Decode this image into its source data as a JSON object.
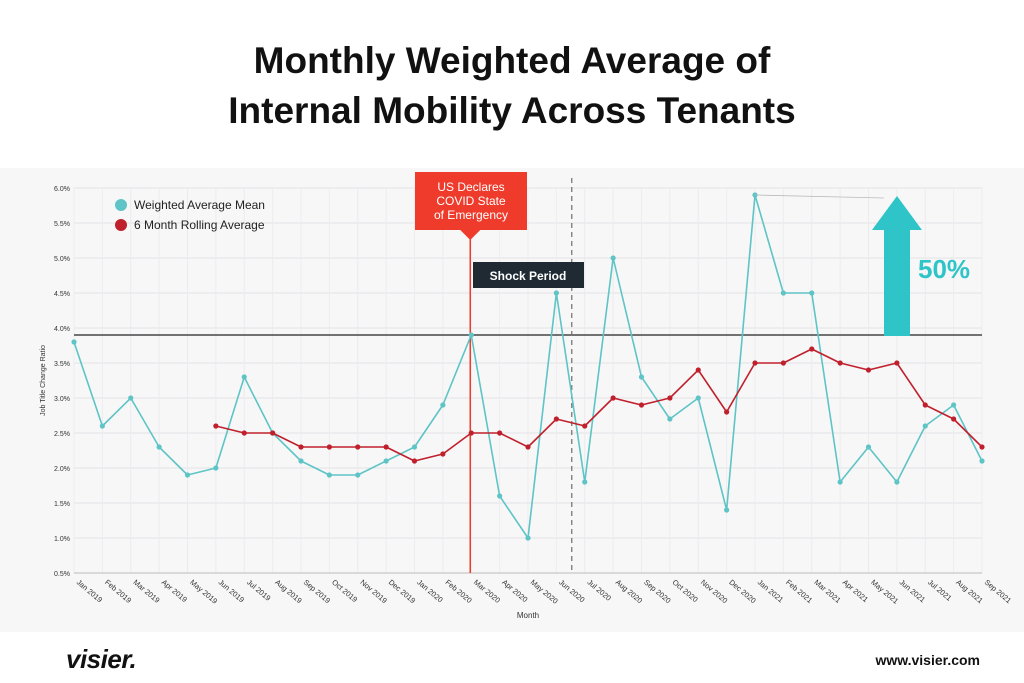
{
  "title_line1": "Monthly Weighted Average of",
  "title_line2": "Internal Mobility Across Tenants",
  "footer": {
    "logo": "visier.",
    "url": "www.visier.com"
  },
  "colors": {
    "mean": "#5ec4c6",
    "rolling": "#c0202c",
    "covid": "#ef3b2c",
    "arrow": "#2ec4c8",
    "callout": "#1f2a33"
  },
  "chart_data": {
    "type": "line",
    "xlabel": "Month",
    "ylabel": "Job Title Change Ratio",
    "ylim": [
      0.5,
      6.0
    ],
    "y_ticks": [
      "0.5%",
      "1.0%",
      "1.5%",
      "2.0%",
      "2.5%",
      "3.0%",
      "3.5%",
      "4.0%",
      "4.5%",
      "5.0%",
      "5.5%",
      "6.0%"
    ],
    "categories": [
      "Jan 2019",
      "Feb 2019",
      "Mar 2019",
      "Apr 2019",
      "May 2019",
      "Jun 2019",
      "Jul 2019",
      "Aug 2019",
      "Sep 2019",
      "Oct 2019",
      "Nov 2019",
      "Dec 2019",
      "Jan 2020",
      "Feb 2020",
      "Mar 2020",
      "Apr 2020",
      "May 2020",
      "Jun 2020",
      "Jul 2020",
      "Aug 2020",
      "Sep 2020",
      "Oct 2020",
      "Nov 2020",
      "Dec 2020",
      "Jan 2021",
      "Feb 2021",
      "Mar 2021",
      "Apr 2021",
      "May 2021",
      "Jun 2021",
      "Jul 2021",
      "Aug 2021",
      "Sep 2021"
    ],
    "series": [
      {
        "name": "Weighted Average Mean",
        "values": [
          3.8,
          2.6,
          3.0,
          2.3,
          1.9,
          2.0,
          3.3,
          2.5,
          2.1,
          1.9,
          1.9,
          2.1,
          2.3,
          2.9,
          3.9,
          1.6,
          1.0,
          4.5,
          1.8,
          5.0,
          3.3,
          2.7,
          3.0,
          1.4,
          5.9,
          4.5,
          4.5,
          1.8,
          2.3,
          1.8,
          2.6,
          2.9,
          2.1
        ]
      },
      {
        "name": "6 Month Rolling Average",
        "values": [
          null,
          null,
          null,
          null,
          null,
          2.6,
          2.5,
          2.5,
          2.3,
          2.3,
          2.3,
          2.3,
          2.1,
          2.2,
          2.5,
          2.5,
          2.3,
          2.7,
          2.6,
          3.0,
          2.9,
          3.0,
          3.4,
          2.8,
          3.5,
          3.5,
          3.7,
          3.5,
          3.4,
          3.5,
          2.9,
          2.7,
          2.3
        ]
      }
    ],
    "reference_line": 3.9,
    "covid_marker": {
      "month": "Mar 2020",
      "label_lines": [
        "US Declares",
        "COVID State",
        "of Emergency"
      ]
    },
    "shock_period": {
      "end_month": "Jul 2020",
      "label": "Shock Period"
    },
    "increase_label": "50%",
    "legend_position": "top-left"
  }
}
